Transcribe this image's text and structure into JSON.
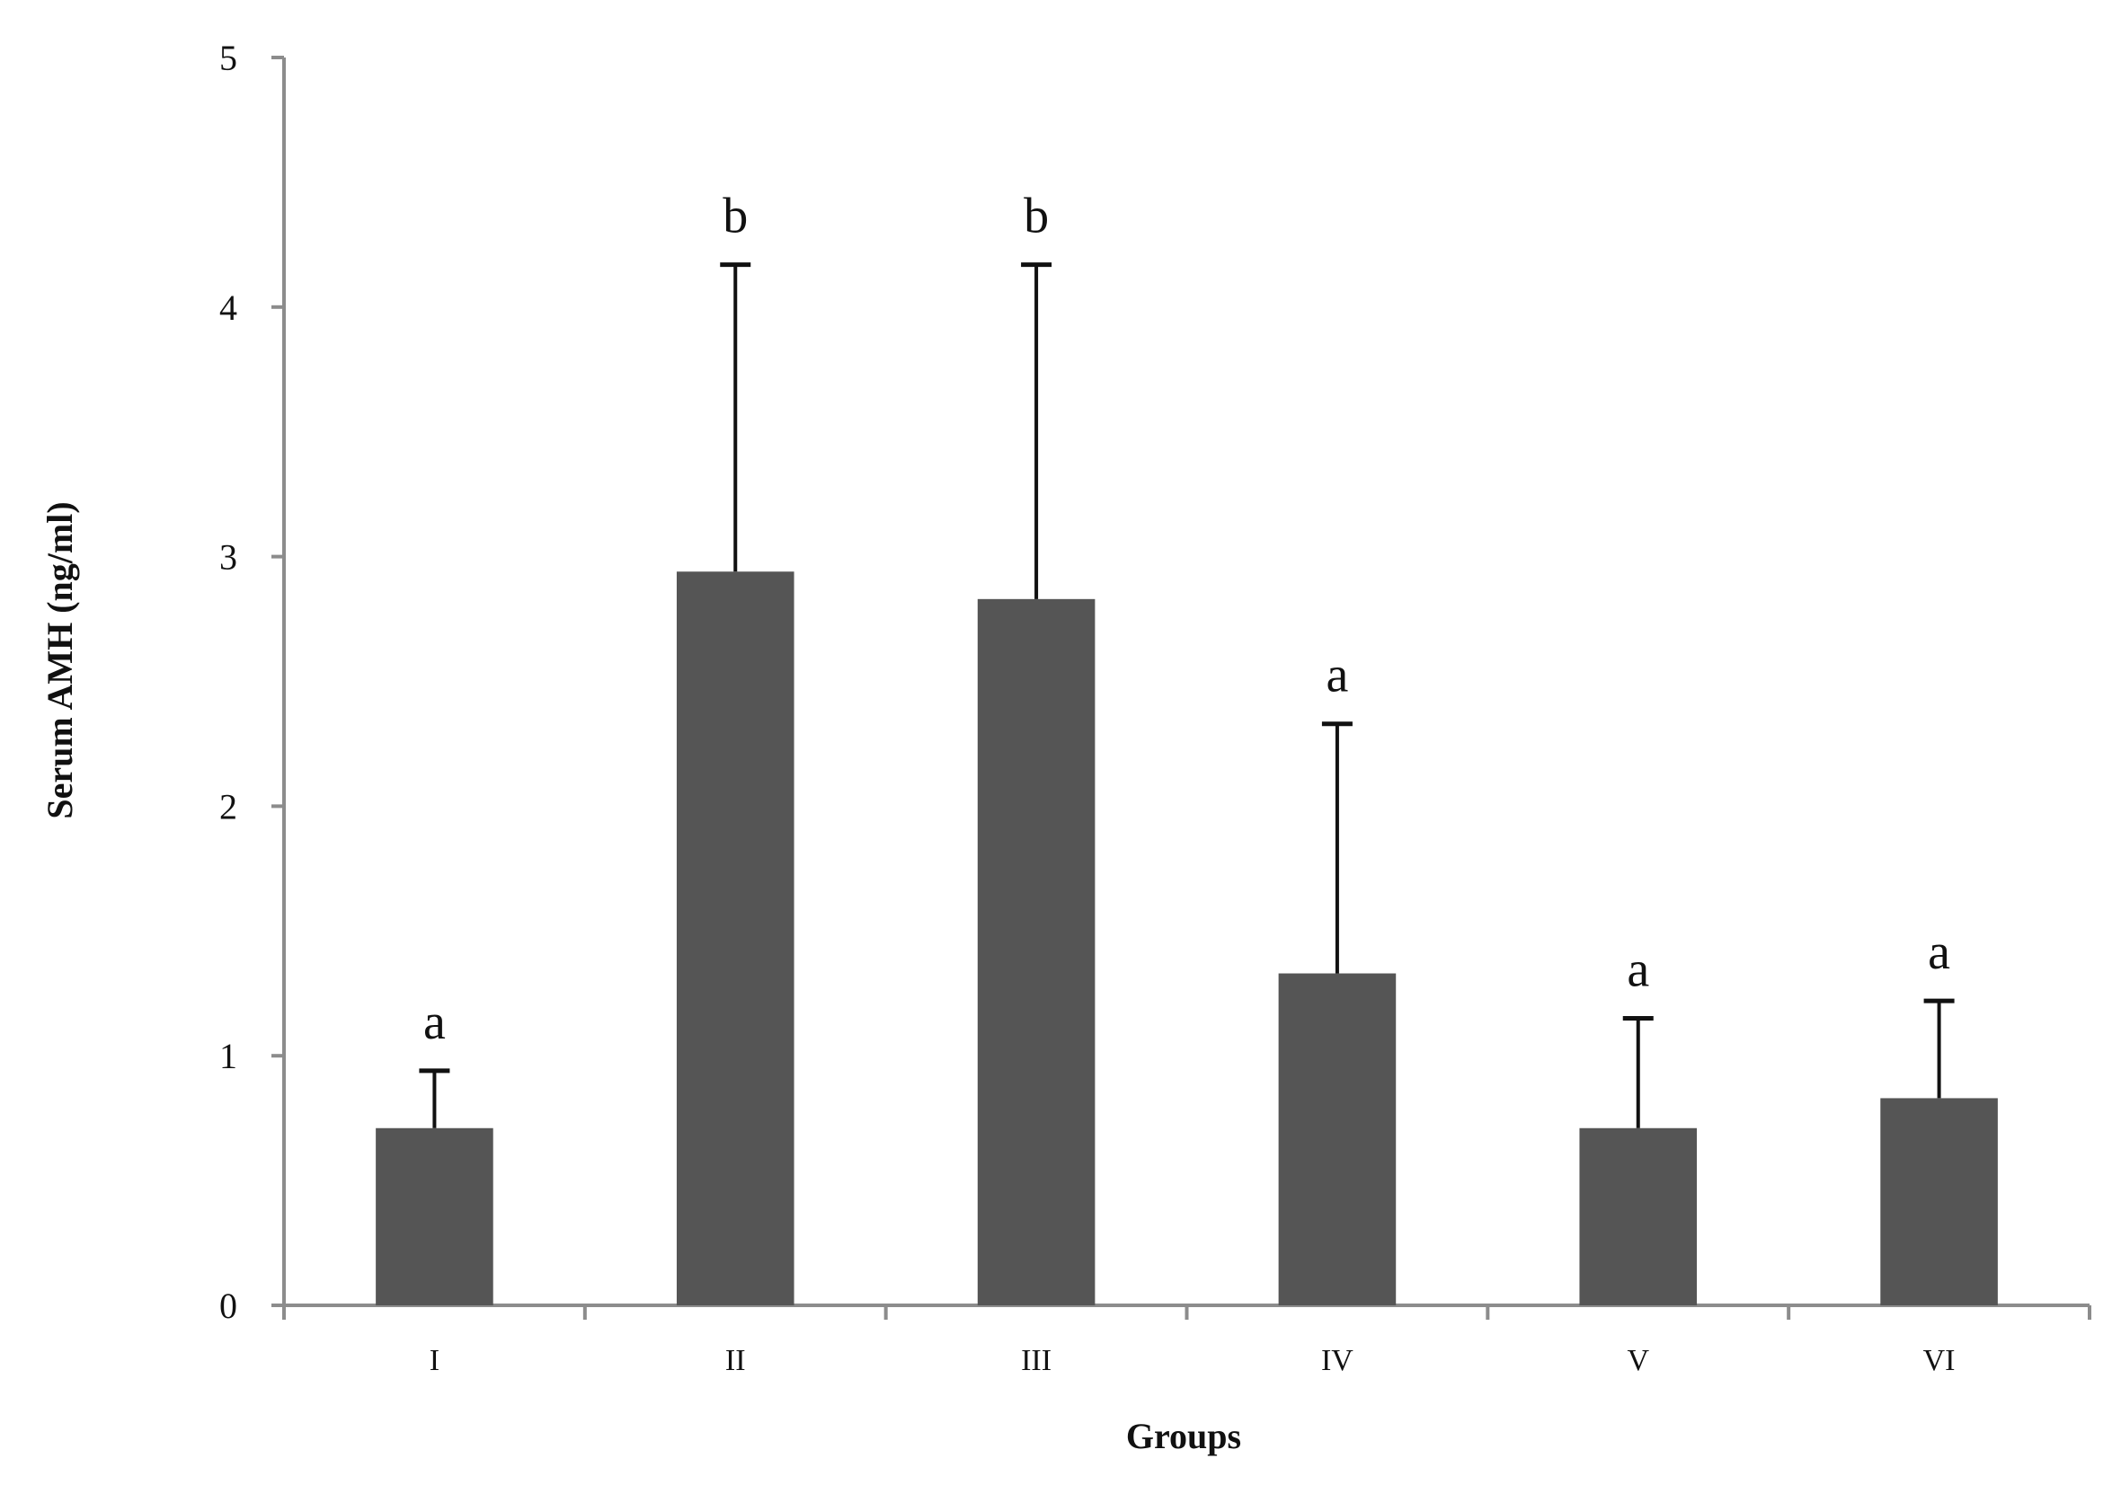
{
  "chart_data": {
    "type": "bar",
    "title": "",
    "xlabel": "Groups",
    "ylabel": "Serum AMH (ng/ml)",
    "ylim": [
      0,
      5
    ],
    "yticks": [
      "0",
      "1",
      "2",
      "3",
      "4",
      "5"
    ],
    "categories": [
      "I",
      "II",
      "III",
      "IV",
      "V",
      "VI"
    ],
    "values": [
      0.71,
      2.94,
      2.83,
      1.33,
      0.71,
      0.83
    ],
    "error_plus": [
      0.23,
      1.23,
      1.34,
      1.0,
      0.44,
      0.39
    ],
    "significance_labels": [
      "a",
      "b",
      "b",
      "a",
      "a",
      "a"
    ],
    "grid": false,
    "legend": "none",
    "colors": {
      "bar": "#555555",
      "axis": "#8c8c8c",
      "error_bar": "#111111"
    }
  }
}
